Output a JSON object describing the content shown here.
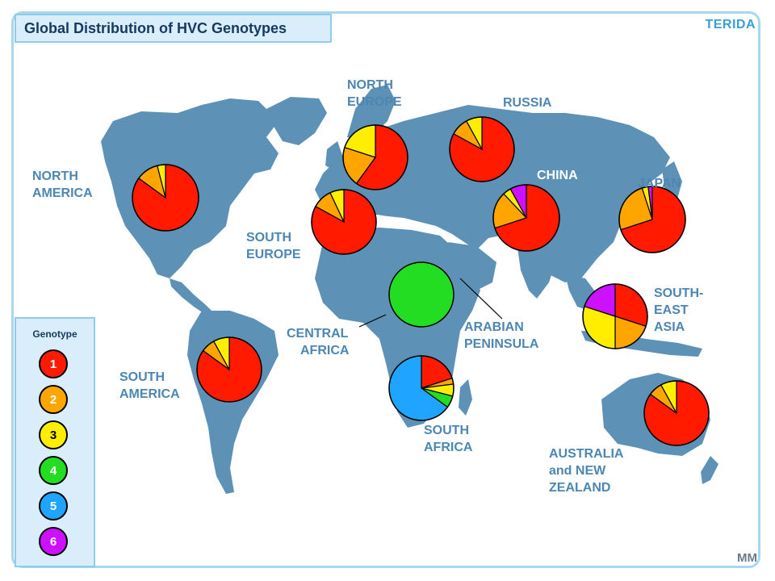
{
  "title": "Global Distribution of HVC Genotypes",
  "brand": "TERIDA",
  "logo_text": "MM",
  "colors": {
    "land": "#5d92b6",
    "label": "#4c86b3",
    "genotype_1": "#ff1a00",
    "genotype_2": "#ffa500",
    "genotype_3": "#ffee00",
    "genotype_4": "#22dd22",
    "genotype_5": "#1fa4ff",
    "genotype_6": "#cc11ff"
  },
  "legend": {
    "title": "Genotype",
    "items": [
      {
        "label": "1",
        "color": "#ff1a00"
      },
      {
        "label": "2",
        "color": "#ffa500"
      },
      {
        "label": "3",
        "color": "#ffee00"
      },
      {
        "label": "4",
        "color": "#22dd22"
      },
      {
        "label": "5",
        "color": "#1fa4ff"
      },
      {
        "label": "6",
        "color": "#cc11ff"
      }
    ]
  },
  "regions": [
    {
      "name": "north-america",
      "label_lines": [
        "NORTH",
        "AMERICA"
      ],
      "shares": {
        "1": 85,
        "2": 11,
        "3": 4
      }
    },
    {
      "name": "north-europe",
      "label_lines": [
        "NORTH",
        "EUROPE"
      ],
      "shares": {
        "1": 60,
        "2": 20,
        "3": 20
      }
    },
    {
      "name": "russia",
      "label_lines": [
        "RUSSIA"
      ],
      "shares": {
        "1": 83,
        "2": 9,
        "3": 8
      }
    },
    {
      "name": "south-europe",
      "label_lines": [
        "SOUTH",
        "EUROPE"
      ],
      "shares": {
        "1": 83,
        "2": 10,
        "3": 7
      }
    },
    {
      "name": "china",
      "label_lines": [
        "CHINA"
      ],
      "shares": {
        "1": 70,
        "2": 18,
        "3": 4,
        "6": 8
      }
    },
    {
      "name": "japan",
      "label_lines": [
        "JAPAN"
      ],
      "shares": {
        "1": 70,
        "2": 25,
        "3": 3,
        "6": 2
      }
    },
    {
      "name": "central-africa",
      "label_lines": [
        "CENTRAL",
        "AFRICA"
      ],
      "shares": {
        "4": 100
      }
    },
    {
      "name": "arabian-peninsula",
      "label_lines": [
        "ARABIAN",
        "PENINSULA"
      ],
      "shares": {}
    },
    {
      "name": "south-east-asia",
      "label_lines": [
        "SOUTH-",
        "EAST",
        "ASIA"
      ],
      "shares": {
        "1": 30,
        "2": 20,
        "3": 30,
        "6": 20
      }
    },
    {
      "name": "south-america",
      "label_lines": [
        "SOUTH",
        "AMERICA"
      ],
      "shares": {
        "1": 85,
        "2": 7,
        "3": 8
      }
    },
    {
      "name": "south-africa",
      "label_lines": [
        "SOUTH",
        "AFRICA"
      ],
      "shares": {
        "1": 20,
        "2": 3,
        "3": 6,
        "4": 6,
        "5": 65
      }
    },
    {
      "name": "australia-nz",
      "label_lines": [
        "AUSTRALIA",
        "and NEW",
        "ZEALAND"
      ],
      "shares": {
        "1": 85,
        "2": 7,
        "3": 8
      }
    }
  ]
}
